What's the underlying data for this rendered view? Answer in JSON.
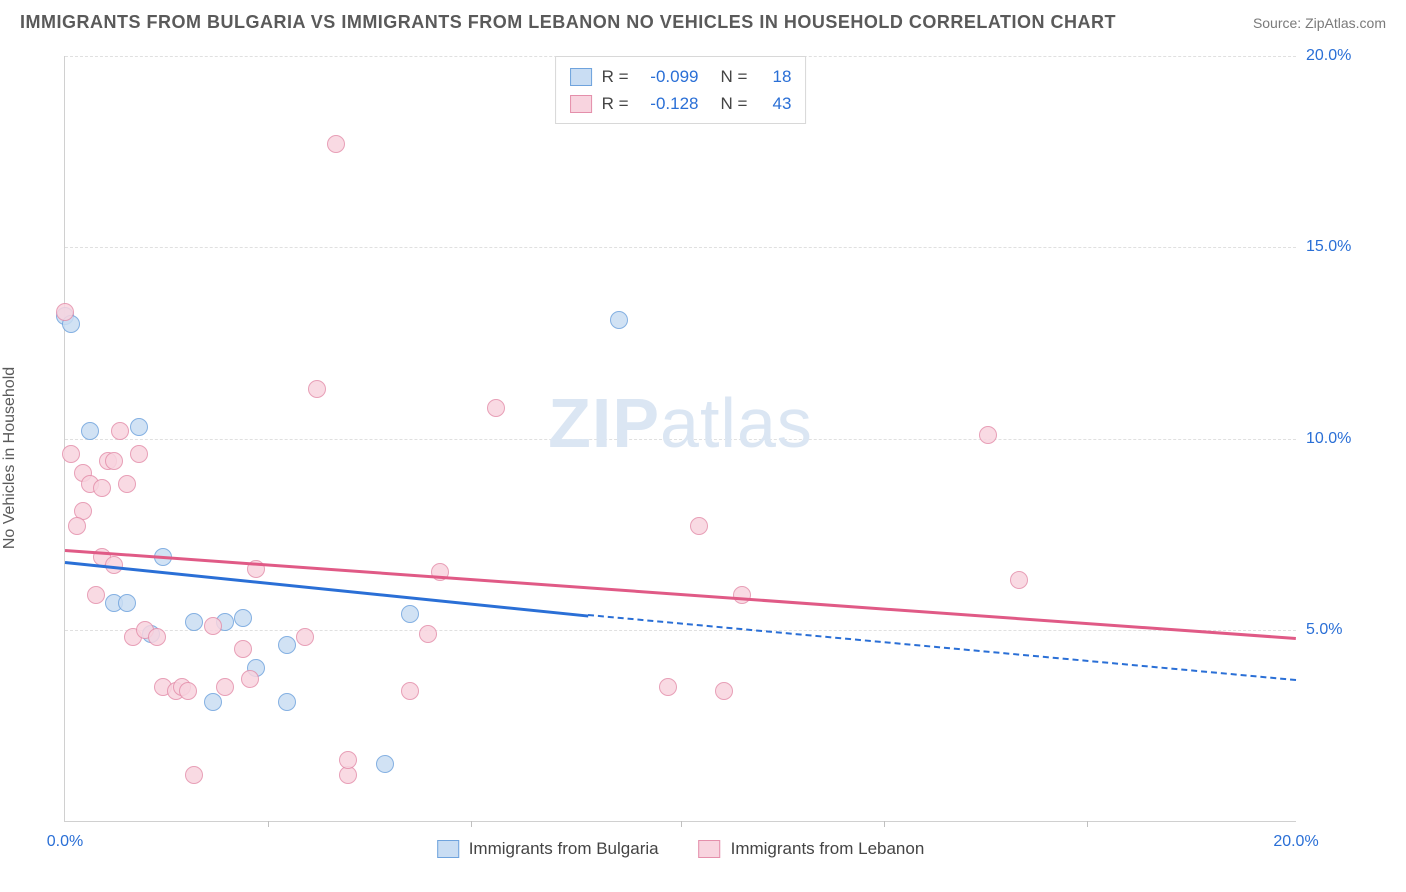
{
  "title": "IMMIGRANTS FROM BULGARIA VS IMMIGRANTS FROM LEBANON NO VEHICLES IN HOUSEHOLD CORRELATION CHART",
  "source": "Source: ZipAtlas.com",
  "ylabel": "No Vehicles in Household",
  "watermark_bold": "ZIP",
  "watermark_light": "atlas",
  "watermark_color": "#dbe6f3",
  "chart": {
    "type": "scatter",
    "xlim": [
      0,
      20
    ],
    "ylim": [
      0,
      20
    ],
    "y_ticks": [
      5,
      10,
      15,
      20
    ],
    "y_tick_labels": [
      "5.0%",
      "10.0%",
      "15.0%",
      "20.0%"
    ],
    "x_major_ticks": [
      0,
      20
    ],
    "x_major_labels": [
      "0.0%",
      "20.0%"
    ],
    "x_minor_ticks": [
      3.3,
      6.6,
      10,
      13.3,
      16.6
    ],
    "tick_label_color": "#2a6fd6",
    "grid_color": "#e0e0e0",
    "axis_color": "#d0d0d0",
    "background_color": "#ffffff",
    "point_radius": 9,
    "point_border_width": 1.5,
    "series": [
      {
        "name": "Immigrants from Bulgaria",
        "fill": "#c9ddf3",
        "stroke": "#6fa3dd",
        "line_color": "#2a6fd6",
        "r": "-0.099",
        "n": "18",
        "trend": {
          "x1": 0,
          "y1": 6.8,
          "x2_solid": 8.5,
          "y2_solid": 5.4,
          "x2_dash": 20,
          "y2_dash": 3.7
        },
        "points": [
          [
            0.0,
            13.2
          ],
          [
            0.1,
            13.0
          ],
          [
            0.4,
            10.2
          ],
          [
            1.2,
            10.3
          ],
          [
            0.8,
            5.7
          ],
          [
            1.0,
            5.7
          ],
          [
            1.4,
            4.9
          ],
          [
            1.6,
            6.9
          ],
          [
            2.1,
            5.2
          ],
          [
            2.6,
            5.2
          ],
          [
            2.9,
            5.3
          ],
          [
            3.1,
            4.0
          ],
          [
            3.6,
            4.6
          ],
          [
            3.6,
            3.1
          ],
          [
            5.2,
            1.5
          ],
          [
            5.6,
            5.4
          ],
          [
            9.0,
            13.1
          ],
          [
            2.4,
            3.1
          ]
        ]
      },
      {
        "name": "Immigrants from Lebanon",
        "fill": "#f8d4df",
        "stroke": "#e48fab",
        "line_color": "#e05a86",
        "r": "-0.128",
        "n": "43",
        "trend": {
          "x1": 0,
          "y1": 7.1,
          "x2_solid": 20,
          "y2_solid": 4.8
        },
        "points": [
          [
            0.0,
            13.3
          ],
          [
            0.1,
            9.6
          ],
          [
            0.3,
            8.1
          ],
          [
            0.3,
            9.1
          ],
          [
            0.2,
            7.7
          ],
          [
            0.4,
            8.8
          ],
          [
            0.5,
            5.9
          ],
          [
            0.6,
            8.7
          ],
          [
            0.6,
            6.9
          ],
          [
            0.7,
            9.4
          ],
          [
            0.8,
            9.4
          ],
          [
            0.8,
            6.7
          ],
          [
            1.0,
            8.8
          ],
          [
            1.1,
            4.8
          ],
          [
            1.2,
            9.6
          ],
          [
            1.3,
            5.0
          ],
          [
            1.5,
            4.8
          ],
          [
            1.6,
            3.5
          ],
          [
            1.8,
            3.4
          ],
          [
            1.9,
            3.5
          ],
          [
            2.0,
            3.4
          ],
          [
            2.1,
            1.2
          ],
          [
            2.4,
            5.1
          ],
          [
            2.6,
            3.5
          ],
          [
            2.9,
            4.5
          ],
          [
            3.0,
            3.7
          ],
          [
            3.1,
            6.6
          ],
          [
            3.9,
            4.8
          ],
          [
            4.1,
            11.3
          ],
          [
            4.4,
            17.7
          ],
          [
            4.6,
            1.2
          ],
          [
            4.6,
            1.6
          ],
          [
            5.6,
            3.4
          ],
          [
            5.9,
            4.9
          ],
          [
            6.1,
            6.5
          ],
          [
            9.8,
            3.5
          ],
          [
            10.3,
            7.7
          ],
          [
            10.7,
            3.4
          ],
          [
            11.0,
            5.9
          ],
          [
            15.0,
            10.1
          ],
          [
            15.5,
            6.3
          ],
          [
            7.0,
            10.8
          ],
          [
            0.9,
            10.2
          ]
        ]
      }
    ]
  },
  "legend_top": {
    "r_label": "R =",
    "n_label": "N ="
  }
}
